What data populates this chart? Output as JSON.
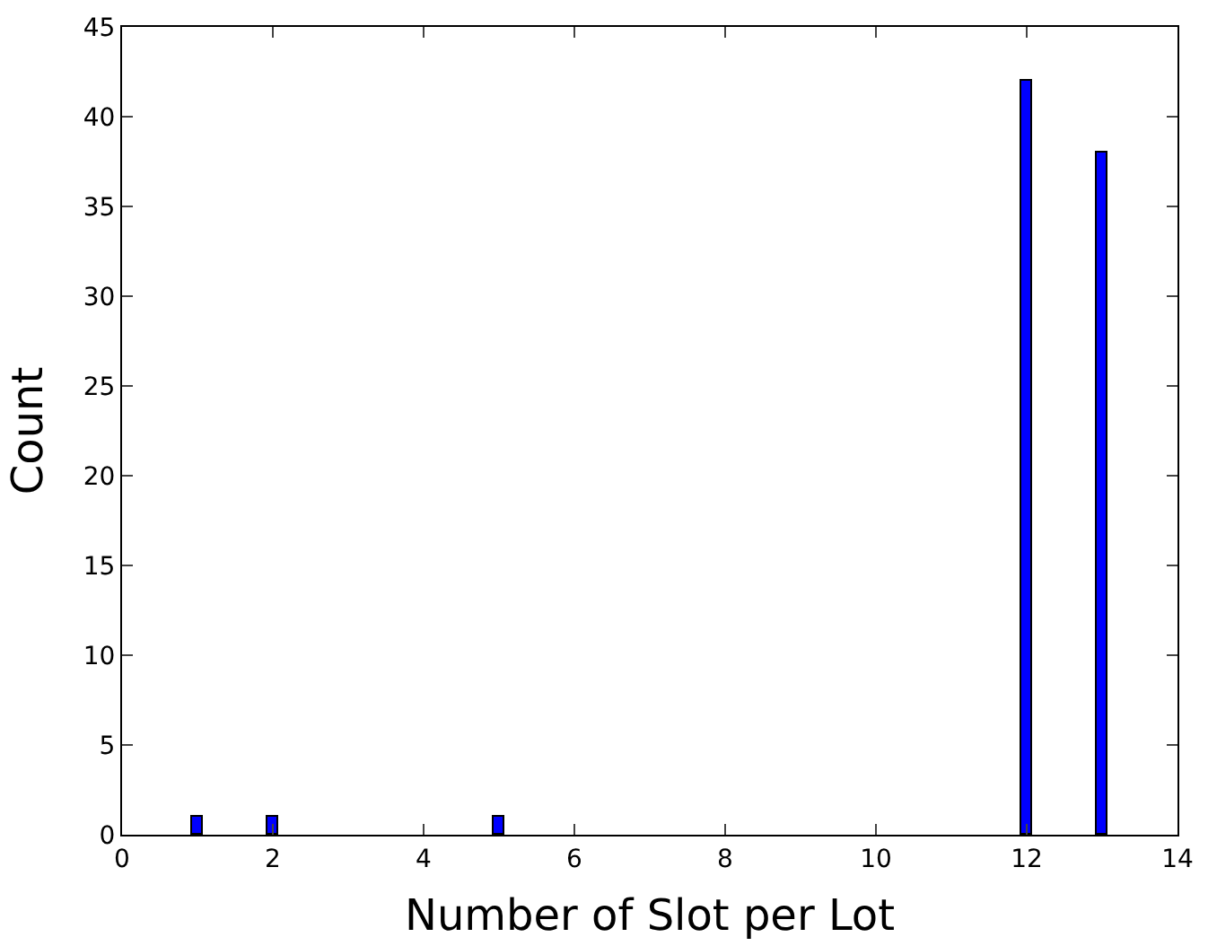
{
  "chart_data": {
    "type": "bar",
    "xlabel": "Number of Slot per Lot",
    "ylabel": "Count",
    "x": [
      1,
      2,
      5,
      12,
      13
    ],
    "series": [
      {
        "color": "#0000ff",
        "values": [
          1,
          1,
          1,
          42,
          38
        ]
      }
    ],
    "xlim": [
      0,
      14
    ],
    "xticks": [
      0,
      2,
      4,
      6,
      8,
      10,
      12,
      14
    ],
    "ylim": [
      0,
      45
    ],
    "yticks": [
      0,
      5,
      10,
      15,
      20,
      25,
      30,
      35,
      40,
      45
    ]
  }
}
